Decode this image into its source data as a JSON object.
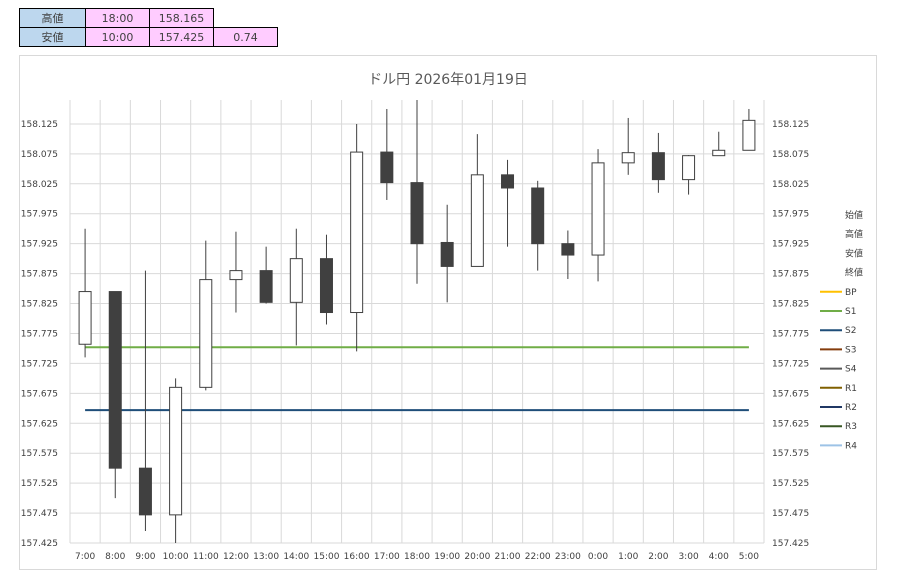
{
  "summary": {
    "rows": [
      {
        "label": "高値",
        "time": "18:00",
        "price": "158.165",
        "extra": ""
      },
      {
        "label": "安値",
        "time": "10:00",
        "price": "157.425",
        "extra": "0.74"
      }
    ]
  },
  "chart_data": {
    "type": "candlestick",
    "title": "ドル円  2026年01月19日",
    "categories": [
      "7:00",
      "8:00",
      "9:00",
      "10:00",
      "11:00",
      "12:00",
      "13:00",
      "14:00",
      "15:00",
      "16:00",
      "17:00",
      "18:00",
      "19:00",
      "20:00",
      "21:00",
      "22:00",
      "23:00",
      "0:00",
      "1:00",
      "2:00",
      "3:00",
      "4:00",
      "5:00"
    ],
    "ohlc": [
      {
        "o": 157.757,
        "h": 157.95,
        "l": 157.735,
        "c": 157.845
      },
      {
        "o": 157.845,
        "h": 157.845,
        "l": 157.5,
        "c": 157.55
      },
      {
        "o": 157.55,
        "h": 157.88,
        "l": 157.445,
        "c": 157.472
      },
      {
        "o": 157.472,
        "h": 157.7,
        "l": 157.425,
        "c": 157.685
      },
      {
        "o": 157.685,
        "h": 157.93,
        "l": 157.68,
        "c": 157.865
      },
      {
        "o": 157.865,
        "h": 157.945,
        "l": 157.81,
        "c": 157.88
      },
      {
        "o": 157.88,
        "h": 157.92,
        "l": 157.825,
        "c": 157.827
      },
      {
        "o": 157.827,
        "h": 157.95,
        "l": 157.755,
        "c": 157.9
      },
      {
        "o": 157.9,
        "h": 157.94,
        "l": 157.79,
        "c": 157.81
      },
      {
        "o": 157.81,
        "h": 158.125,
        "l": 157.745,
        "c": 158.078
      },
      {
        "o": 158.078,
        "h": 158.15,
        "l": 157.998,
        "c": 158.027
      },
      {
        "o": 158.027,
        "h": 158.165,
        "l": 157.858,
        "c": 157.925
      },
      {
        "o": 157.927,
        "h": 157.99,
        "l": 157.827,
        "c": 157.887
      },
      {
        "o": 157.887,
        "h": 158.108,
        "l": 157.887,
        "c": 158.04
      },
      {
        "o": 158.04,
        "h": 158.065,
        "l": 157.92,
        "c": 158.018
      },
      {
        "o": 158.018,
        "h": 158.03,
        "l": 157.88,
        "c": 157.925
      },
      {
        "o": 157.925,
        "h": 157.947,
        "l": 157.866,
        "c": 157.906
      },
      {
        "o": 157.906,
        "h": 158.083,
        "l": 157.862,
        "c": 158.06
      },
      {
        "o": 158.06,
        "h": 158.135,
        "l": 158.04,
        "c": 158.077
      },
      {
        "o": 158.077,
        "h": 158.11,
        "l": 158.01,
        "c": 158.032
      },
      {
        "o": 158.032,
        "h": 158.073,
        "l": 158.007,
        "c": 158.072
      },
      {
        "o": 158.072,
        "h": 158.112,
        "l": 158.072,
        "c": 158.081
      },
      {
        "o": 158.081,
        "h": 158.15,
        "l": 158.081,
        "c": 158.131
      }
    ],
    "horizontal_lines": [
      {
        "name": "S1",
        "value": 157.752,
        "color": "#70ad47"
      },
      {
        "name": "S2",
        "value": 157.647,
        "color": "#1f4e79"
      }
    ],
    "ylim": [
      157.425,
      158.165
    ],
    "yticks": [
      "158.125",
      "158.075",
      "158.025",
      "157.975",
      "157.925",
      "157.875",
      "157.825",
      "157.775",
      "157.725",
      "157.675",
      "157.625",
      "157.575",
      "157.525",
      "157.475",
      "157.425"
    ],
    "legend_position": "right",
    "legend": [
      {
        "name": "始値",
        "color": ""
      },
      {
        "name": "高値",
        "color": ""
      },
      {
        "name": "安値",
        "color": ""
      },
      {
        "name": "終値",
        "color": ""
      },
      {
        "name": "BP",
        "color": "#ffc000"
      },
      {
        "name": "S1",
        "color": "#70ad47"
      },
      {
        "name": "S2",
        "color": "#1f4e79"
      },
      {
        "name": "S3",
        "color": "#843c0c"
      },
      {
        "name": "S4",
        "color": "#595959"
      },
      {
        "name": "R1",
        "color": "#806000"
      },
      {
        "name": "R2",
        "color": "#203864"
      },
      {
        "name": "R3",
        "color": "#385723"
      },
      {
        "name": "R4",
        "color": "#9dc3e6"
      }
    ],
    "colors": {
      "up_fill": "#ffffff",
      "down_fill": "#404040",
      "outline": "#404040",
      "grid": "#d9d9d9"
    }
  }
}
